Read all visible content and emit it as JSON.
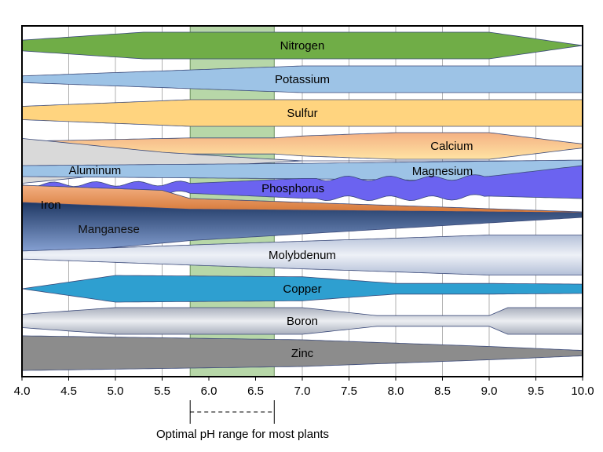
{
  "chart_data": {
    "type": "area",
    "xlabel": "",
    "ylabel": "",
    "xlim": [
      4.0,
      10.0
    ],
    "x_ticks": [
      "4.0",
      "4.5",
      "5.0",
      "5.5",
      "6.0",
      "6.5",
      "7.0",
      "7.5",
      "8.0",
      "8.5",
      "9.0",
      "9.5",
      "10.0"
    ],
    "grid": "vertical",
    "highlight": {
      "from": 5.8,
      "to": 6.7,
      "color": "#b7d7a8",
      "label": "Optimal pH range for most plants"
    },
    "series": [
      {
        "name": "Nitrogen",
        "color": "#70ad47",
        "profile": [
          [
            4,
            0.4
          ],
          [
            5.3,
            1
          ],
          [
            9,
            1
          ],
          [
            10,
            0
          ]
        ],
        "label_x": 7.0
      },
      {
        "name": "Potassium",
        "color": "#9dc3e6",
        "profile": [
          [
            4,
            0.25
          ],
          [
            7,
            1
          ],
          [
            10,
            1
          ]
        ],
        "label_x": 7.0
      },
      {
        "name": "Sulfur",
        "color": "#ffd47f",
        "profile": [
          [
            4,
            0.5
          ],
          [
            5.8,
            1
          ],
          [
            10,
            1
          ]
        ],
        "label_x": 7.0
      },
      {
        "name": "Calcium",
        "color": "#f4b183",
        "color2": "#ffe3a3",
        "profile": [
          [
            4,
            0.35
          ],
          [
            5.8,
            0.6
          ],
          [
            6.7,
            0.6
          ],
          [
            7,
            0.75
          ],
          [
            8,
            1
          ],
          [
            9,
            1
          ],
          [
            10,
            0.15
          ]
        ],
        "label_x": 8.6
      },
      {
        "name": "Aluminum",
        "color": "#d9d9d9",
        "profile": [
          [
            4,
            1.3
          ],
          [
            5.5,
            0.5
          ],
          [
            6.5,
            0.15
          ],
          [
            7,
            0
          ]
        ],
        "label_x": 4.5
      },
      {
        "name": "Magnesium",
        "color": "#9dc3e6",
        "profile": [
          [
            4,
            0.5
          ],
          [
            7,
            0.7
          ],
          [
            10,
            1
          ]
        ],
        "label_x": 8.5
      },
      {
        "name": "Phosphorus",
        "color": "#6b63f0",
        "profile": [
          [
            4,
            0.35
          ],
          [
            5.8,
            0.45
          ],
          [
            7,
            0.9
          ],
          [
            9,
            0.9
          ],
          [
            10,
            1.5
          ]
        ],
        "label_x": 6.9
      },
      {
        "name": "Iron",
        "color": "#c55a11",
        "color2": "#f4b183",
        "profile": [
          [
            4,
            1.3
          ],
          [
            5.5,
            1.1
          ],
          [
            5.8,
            0.6
          ],
          [
            10,
            0.1
          ]
        ],
        "label_x": 4.2
      },
      {
        "name": "Manganese",
        "color": "#1f3864",
        "color2": "#8faadc",
        "profile": [
          [
            4,
            1.7
          ],
          [
            5.8,
            1
          ],
          [
            10,
            0.15
          ]
        ],
        "label_x": 4.6
      },
      {
        "name": "Molybdenum",
        "color": "#b4c0d8",
        "color2": "#eef1f7",
        "profile": [
          [
            4,
            0.3
          ],
          [
            6,
            0.8
          ],
          [
            9,
            1.5
          ],
          [
            10,
            1.5
          ]
        ],
        "label_x": 7.0
      },
      {
        "name": "Copper",
        "color": "#2e9fd0",
        "profile": [
          [
            4,
            0
          ],
          [
            5,
            1
          ],
          [
            7,
            0.9
          ],
          [
            8,
            0.4
          ],
          [
            9,
            0.4
          ],
          [
            10,
            0.35
          ]
        ],
        "label_x": 7.0
      },
      {
        "name": "Boron",
        "color": "#a9afbd",
        "color2": "#eceef2",
        "profile": [
          [
            4,
            0.5
          ],
          [
            5,
            1
          ],
          [
            7,
            1
          ],
          [
            7.8,
            0.4
          ],
          [
            9,
            0.4
          ],
          [
            9.2,
            1
          ],
          [
            10,
            1
          ]
        ],
        "label_x": 7.0
      },
      {
        "name": "Zinc",
        "color": "#8c8c8c",
        "profile": [
          [
            4,
            1.3
          ],
          [
            7,
            1
          ],
          [
            9,
            0.5
          ],
          [
            10,
            0.2
          ]
        ],
        "label_x": 7.0
      }
    ]
  }
}
